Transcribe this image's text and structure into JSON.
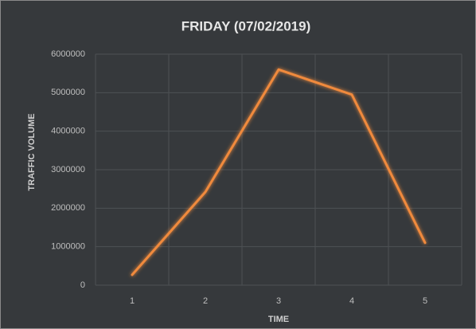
{
  "chart_data": {
    "type": "line",
    "title": "FRIDAY (07/02/2019)",
    "x_label": "TIME",
    "y_label": "TRAFFIC VOLUME",
    "categories": [
      "1",
      "2",
      "3",
      "4",
      "5"
    ],
    "series": [
      {
        "name": "Traffic Volume",
        "color": "#f08a3c",
        "values": [
          270000,
          2420000,
          5600000,
          4950000,
          1100000
        ]
      }
    ],
    "ylim": [
      0,
      6000000
    ],
    "yticks": [
      0,
      1000000,
      2000000,
      3000000,
      4000000,
      5000000,
      6000000
    ],
    "grid": true
  }
}
